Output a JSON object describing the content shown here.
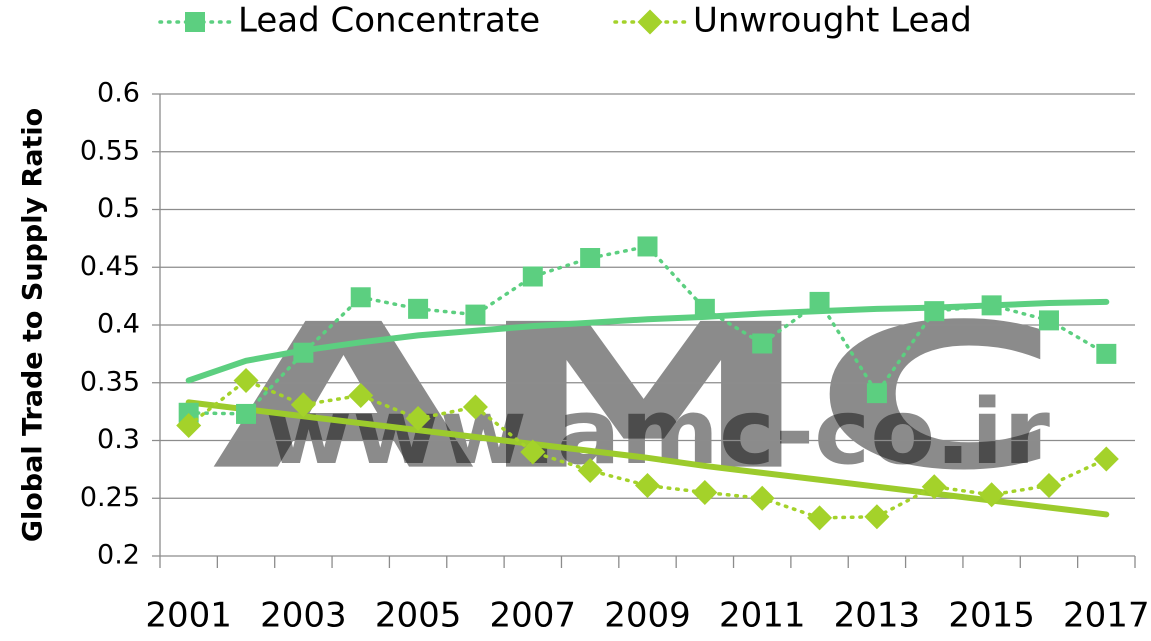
{
  "chart_data": {
    "type": "line",
    "ylabel": "Global Trade to Supply Ratio",
    "watermark": [
      "AMC",
      "www.amc-co.ir"
    ],
    "categories": [
      "2001",
      null,
      "2003",
      null,
      "2005",
      null,
      "2007",
      null,
      "2009",
      null,
      "2011",
      null,
      "2013",
      null,
      "2015",
      null,
      "2017"
    ],
    "ylim": [
      0.2,
      0.6
    ],
    "yticks": [
      0.2,
      0.25,
      0.3,
      0.35,
      0.4,
      0.45,
      0.5,
      0.55,
      0.6
    ],
    "grid": true,
    "legend": "top",
    "series": [
      {
        "name": "Lead Concentrate",
        "color": "#5ccf80",
        "marker": "square",
        "values": [
          0.324,
          0.323,
          0.376,
          0.424,
          0.414,
          0.409,
          0.442,
          0.458,
          0.468,
          0.414,
          0.384,
          0.42,
          0.341,
          0.412,
          0.417,
          0.404,
          0.375
        ],
        "trend": {
          "color": "#5ccf80",
          "values": [
            0.352,
            0.369,
            0.378,
            0.385,
            0.391,
            0.395,
            0.399,
            0.402,
            0.405,
            0.407,
            0.41,
            0.412,
            0.414,
            0.415,
            0.417,
            0.419,
            0.42
          ]
        }
      },
      {
        "name": "Unwrought Lead",
        "color": "#a4d22a",
        "marker": "diamond",
        "values": [
          0.313,
          0.352,
          0.331,
          0.339,
          0.319,
          0.329,
          0.29,
          0.274,
          0.261,
          0.255,
          0.25,
          0.233,
          0.234,
          0.26,
          0.253,
          0.261,
          0.284
        ],
        "trend": {
          "color": "#9ccb2c",
          "values": [
            0.333,
            0.327,
            0.321,
            0.315,
            0.309,
            0.303,
            0.297,
            0.291,
            0.285,
            0.278,
            0.272,
            0.266,
            0.26,
            0.254,
            0.248,
            0.242,
            0.236
          ]
        }
      }
    ]
  }
}
